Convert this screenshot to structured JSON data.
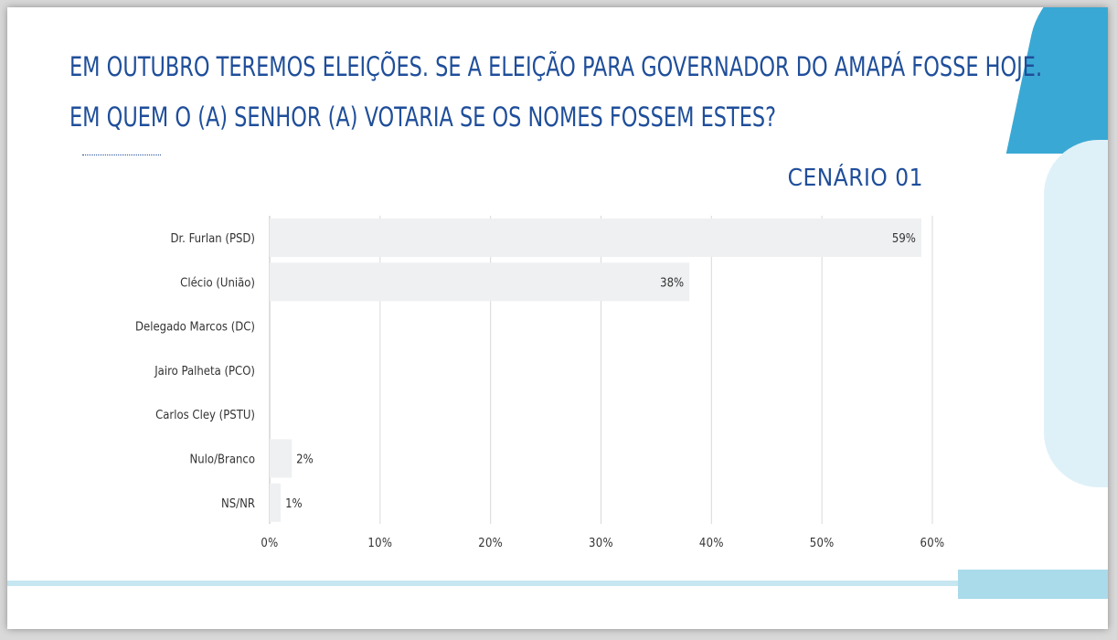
{
  "title": {
    "line1": "EM OUTUBRO TEREMOS ELEIÇÕES. SE A ELEIÇÃO PARA GOVERNADOR DO AMAPÁ FOSSE HOJE.",
    "line2": "EM QUEM O (A) SENHOR (A) VOTARIA SE OS NOMES FOSSEM ESTES?"
  },
  "scenario_label": "CENÁRIO 01",
  "colors": {
    "title": "#1f4e9a",
    "bar": "#eef0f1",
    "grid": "#d9d9d9",
    "accent_dark": "#3aa8d4",
    "accent_light": "#dff1f8"
  },
  "chart_data": {
    "type": "bar",
    "orientation": "horizontal",
    "categories": [
      "Dr. Furlan (PSD)",
      "Clécio (União)",
      "Delegado Marcos (DC)",
      "Jairo Palheta (PCO)",
      "Carlos Cley (PSTU)",
      "Nulo/Branco",
      "NS/NR"
    ],
    "values": [
      59,
      38,
      0,
      0,
      0,
      2,
      1
    ],
    "data_labels": [
      "59%",
      "38%",
      "",
      "",
      "",
      "2%",
      "1%"
    ],
    "xlim": [
      0,
      60
    ],
    "x_ticks": [
      0,
      10,
      20,
      30,
      40,
      50,
      60
    ],
    "x_tick_labels": [
      "0%",
      "10%",
      "20%",
      "30%",
      "40%",
      "50%",
      "60%"
    ],
    "grid": true
  }
}
